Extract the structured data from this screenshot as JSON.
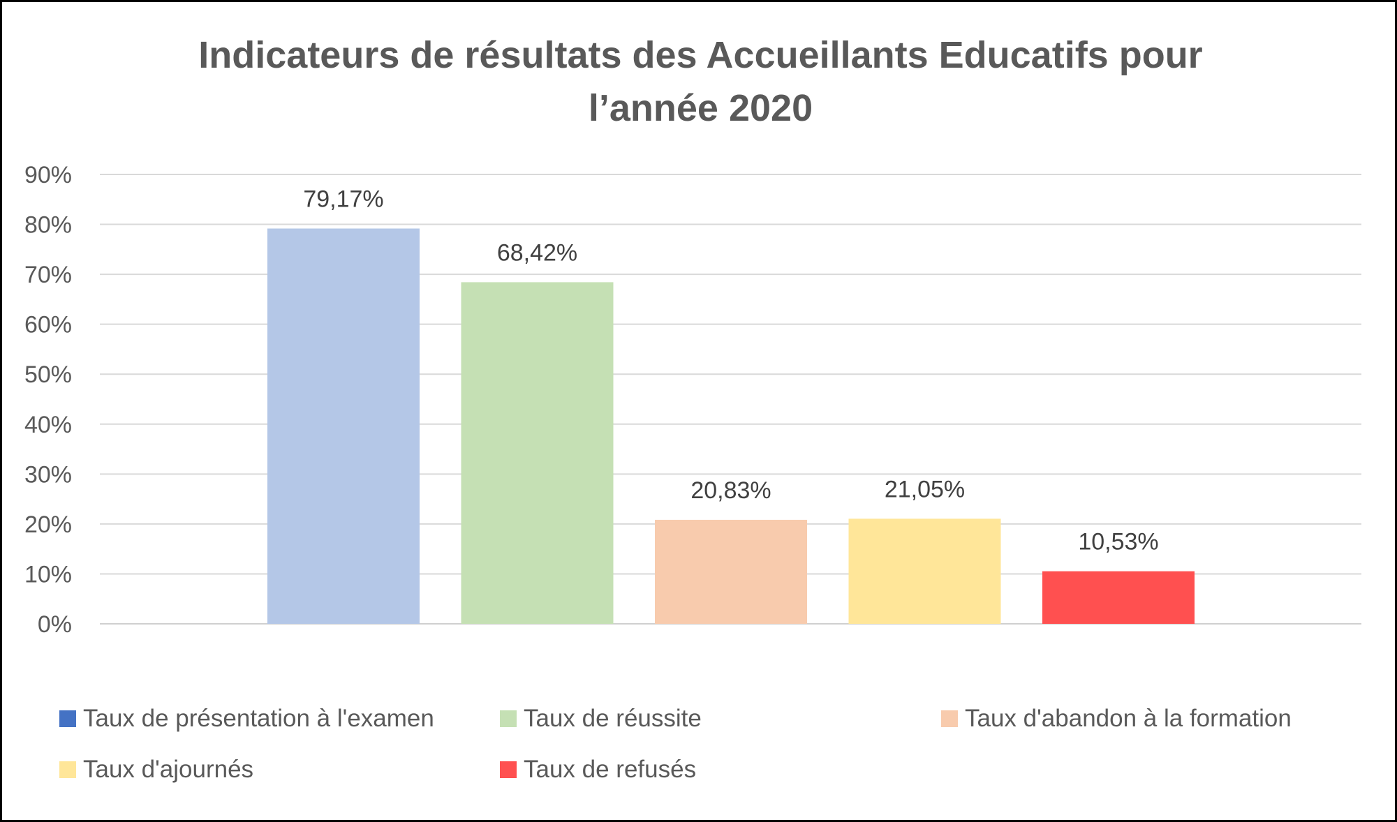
{
  "chart_data": {
    "type": "bar",
    "title_line1": "Indicateurs de résultats des Accueillants Educatifs pour",
    "title_line2": "l’année 2020",
    "xlabel": "",
    "ylabel": "",
    "ylim": [
      0,
      0.9
    ],
    "yticks": [
      "0%",
      "10%",
      "20%",
      "30%",
      "40%",
      "50%",
      "60%",
      "70%",
      "80%",
      "90%"
    ],
    "grid": true,
    "legend_position": "bottom",
    "series": [
      {
        "name": "Taux de présentation à l'examen",
        "value": 0.7917,
        "label": "79,17%",
        "color": "#b4c7e7",
        "legend_color": "#4472c4"
      },
      {
        "name": "Taux de réussite",
        "value": 0.6842,
        "label": "68,42%",
        "color": "#c5e0b4",
        "legend_color": "#c5e0b4"
      },
      {
        "name": "Taux d'abandon à la formation",
        "value": 0.2083,
        "label": "20,83%",
        "color": "#f8cbad",
        "legend_color": "#f8cbad"
      },
      {
        "name": "Taux d'ajournés",
        "value": 0.2105,
        "label": "21,05%",
        "color": "#ffe699",
        "legend_color": "#ffe699"
      },
      {
        "name": "Taux de refusés",
        "value": 0.1053,
        "label": "10,53%",
        "color": "#ff5050",
        "legend_color": "#ff5050"
      }
    ]
  }
}
